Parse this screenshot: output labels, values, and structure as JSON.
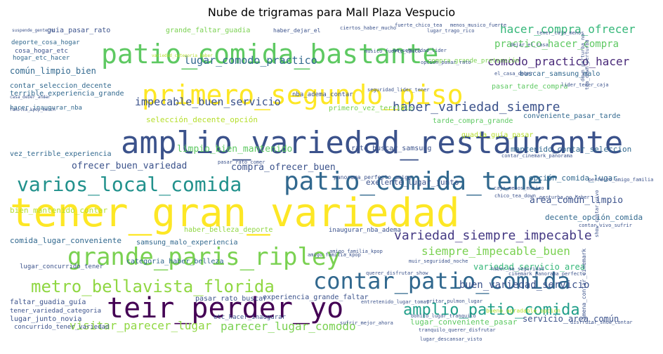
{
  "chart_data": {
    "type": "wordcloud",
    "title": "Nube de trigramas para Mall Plaza Vespucio",
    "words": [
      {
        "text": "tener_gran_variedad",
        "color": "#fde725"
      },
      {
        "text": "amplio_variedad_restaurante",
        "color": "#3b528b"
      },
      {
        "text": "patio_comida_bastante",
        "color": "#5ec962"
      },
      {
        "text": "primero_segundo_piso",
        "color": "#fde725"
      },
      {
        "text": "patio_comida_tener",
        "color": "#31688e"
      },
      {
        "text": "grande_paris_ripley",
        "color": "#7ad151"
      },
      {
        "text": "teir_perder_yo",
        "color": "#440154"
      },
      {
        "text": "contar_patio_comida",
        "color": "#31688e"
      },
      {
        "text": "varios_local_comida",
        "color": "#21918c"
      },
      {
        "text": "metro_bellavista_florida",
        "color": "#90d743"
      },
      {
        "text": "amplio_patio_comida",
        "color": "#1f9e89"
      },
      {
        "text": "haber_variedad_siempre",
        "color": "#3b528b"
      },
      {
        "text": "variedad_siempre_impecable",
        "color": "#443983"
      },
      {
        "text": "siempre_impecable_buen",
        "color": "#7ad151"
      },
      {
        "text": "hacer_compra_ofrecer",
        "color": "#35b779"
      },
      {
        "text": "comodo_practico_hacer",
        "color": "#482878"
      },
      {
        "text": "lugar_comodo_practico",
        "color": "#31688e"
      },
      {
        "text": "impecable_buen_servicio",
        "color": "#3b528b"
      },
      {
        "text": "visitar_parecer_lugar",
        "color": "#90d743"
      },
      {
        "text": "parecer_lugar_comodo",
        "color": "#7ad151"
      },
      {
        "text": "buen_variedad_servicio",
        "color": "#3b528b"
      },
      {
        "text": "practico_hacer_compra",
        "color": "#5ec962"
      },
      {
        "text": "limpio_bien_mantenido",
        "color": "#5ec962"
      },
      {
        "text": "ofrecer_buen_variedad",
        "color": "#3b528b"
      },
      {
        "text": "compra_ofrecer_buen",
        "color": "#3b528b"
      },
      {
        "text": "común_limpio_bien",
        "color": "#31688e"
      },
      {
        "text": "area_común_limpio",
        "color": "#3b528b"
      },
      {
        "text": "bien_mantenido_contar",
        "color": "#b5de2b"
      },
      {
        "text": "variedad_servicio_area",
        "color": "#35b779"
      },
      {
        "text": "servicio_area_común",
        "color": "#3b528b"
      },
      {
        "text": "opción_comida_lugar",
        "color": "#31688e"
      },
      {
        "text": "decente_opción_comida",
        "color": "#31688e"
      },
      {
        "text": "mantenido_contar_seleccion",
        "color": "#31688e"
      },
      {
        "text": "contar_seleccion_decente",
        "color": "#31688e"
      },
      {
        "text": "terrible_experiencia_grande",
        "color": "#31688e"
      },
      {
        "text": "vez_terrible_experiencia",
        "color": "#31688e"
      },
      {
        "text": "selección_decente_opción",
        "color": "#b5de2b"
      },
      {
        "text": "primero_vez_terrible",
        "color": "#7ad151"
      },
      {
        "text": "tarde_compra_grande",
        "color": "#5ec962"
      },
      {
        "text": "guadia_guía_pasar",
        "color": "#b5de2b"
      },
      {
        "text": "conveniente_pasar_tarde",
        "color": "#31688e"
      },
      {
        "text": "pasar_tarde_compra",
        "color": "#5ec962"
      },
      {
        "text": "buscar_samsung_malo",
        "color": "#31688e"
      },
      {
        "text": "compra_grande_pretensión",
        "color": "#7ad151"
      },
      {
        "text": "grande_faltar_guadia",
        "color": "#7ad151"
      },
      {
        "text": "guia_pasar_rato",
        "color": "#3b528b"
      },
      {
        "text": "deporte_cosa_hogar",
        "color": "#31688e"
      },
      {
        "text": "cosa_hogar_etc",
        "color": "#3b528b"
      },
      {
        "text": "hogar_etc_hacer",
        "color": "#31688e"
      },
      {
        "text": "hacer_inaugurar_nba",
        "color": "#31688e"
      },
      {
        "text": "nba_adema_contar",
        "color": "#3b528b"
      },
      {
        "text": "exelente_lugar_junto",
        "color": "#3b528b"
      },
      {
        "text": "lugar_conveniente_pasar",
        "color": "#5ec962"
      },
      {
        "text": "experiencia_grande_faltar",
        "color": "#3b528b"
      },
      {
        "text": "pasar_rato_buscar",
        "color": "#3b528b"
      },
      {
        "text": "faltar_guadia_guía",
        "color": "#3b528b"
      },
      {
        "text": "tener_variedad_categoria",
        "color": "#3b528b"
      },
      {
        "text": "lugar_junto_novia",
        "color": "#3b528b"
      },
      {
        "text": "concurrido_tener_variedad",
        "color": "#3b528b"
      },
      {
        "text": "etc_hacer_inaugurar",
        "color": "#3b528b"
      },
      {
        "text": "comida_lugar_conveniente",
        "color": "#31688e"
      },
      {
        "text": "samsung_malo_experiencia",
        "color": "#31688e"
      },
      {
        "text": "haber_belleza_deporte",
        "color": "#90d743"
      },
      {
        "text": "categoria_haber_belleza",
        "color": "#31688e"
      },
      {
        "text": "lugar_concurrido_tener",
        "color": "#3b528b"
      },
      {
        "text": "inaugurar_nba_adema",
        "color": "#3b528b"
      },
      {
        "text": "rato_buscar_samsung",
        "color": "#3b528b"
      },
      {
        "text": "panorama_perfecto_amigo",
        "color": "#3b528b"
      },
      {
        "text": "contar_cinemark_panorama",
        "color": "#3b528b"
      },
      {
        "text": "perfecto_amigo_familia",
        "color": "#3b528b"
      },
      {
        "text": "chico_tea_down",
        "color": "#3b528b"
      },
      {
        "text": "caja_menos_musico",
        "color": "#3b528b"
      },
      {
        "text": "perturba_no_haber",
        "color": "#3b528b"
      },
      {
        "text": "haber_ma_seguridad",
        "color": "#3b528b"
      },
      {
        "text": "cinemark_panorama_perfecto",
        "color": "#3b528b"
      },
      {
        "text": "bueno_agradable_opcion",
        "color": "#b5de2b"
      },
      {
        "text": "querer_disfrutar_show",
        "color": "#3b528b"
      },
      {
        "text": "amigo_familia_kpop",
        "color": "#3b528b"
      },
      {
        "text": "familia_kpop_merch",
        "color": "#3b528b"
      },
      {
        "text": "casa_deber_andar",
        "color": "#3b528b"
      },
      {
        "text": "seguridad_lider_tener",
        "color": "#3b528b"
      },
      {
        "text": "musico_fuerte_chico",
        "color": "#3b528b"
      },
      {
        "text": "ma_seguridad_lider",
        "color": "#3b528b"
      },
      {
        "text": "variedad_categoria_haber",
        "color": "#b5de2b"
      },
      {
        "text": "haber_dejar_el",
        "color": "#3b528b"
      },
      {
        "text": "fuerte_chico_tea",
        "color": "#3b528b"
      },
      {
        "text": "menos_musico_fuerte",
        "color": "#3b528b"
      },
      {
        "text": "lugar_trago_rico",
        "color": "#3b528b"
      },
      {
        "text": "tener_caja_menos",
        "color": "#3b528b"
      },
      {
        "text": "dejar_el_casa",
        "color": "#3b528b"
      },
      {
        "text": "el_casa_deber",
        "color": "#3b528b"
      },
      {
        "text": "lider_tener_caja",
        "color": "#3b528b"
      },
      {
        "text": "down_perturba_no",
        "color": "#3b528b"
      },
      {
        "text": "tea_down_perturba",
        "color": "#3b528b"
      },
      {
        "text": "amigo_familia_kpop",
        "color": "#3b528b"
      },
      {
        "text": "gritar_pulmon_lugar",
        "color": "#3b528b"
      },
      {
        "text": "opcion_pasar_rato",
        "color": "#3b528b"
      },
      {
        "text": "pasar_rato_comer",
        "color": "#3b528b"
      },
      {
        "text": "contar_vivo_sufrir",
        "color": "#3b528b"
      },
      {
        "text": "show_contar_vivo",
        "color": "#3b528b"
      },
      {
        "text": "muir_seguridad_noche",
        "color": "#3b528b"
      },
      {
        "text": "entretenido_lugar_tomar",
        "color": "#3b528b"
      },
      {
        "text": "bonito_lugar_tranquilo",
        "color": "#3b528b"
      },
      {
        "text": "sufrir_mejor_ahora",
        "color": "#3b528b"
      },
      {
        "text": "tranquilo_querer_disfrutar",
        "color": "#3b528b"
      },
      {
        "text": "lugar_descansar_visto",
        "color": "#3b528b"
      },
      {
        "text": "amena_contar_cinemark",
        "color": "#3b528b"
      },
      {
        "text": "disfrutar_show_contar",
        "color": "#3b528b"
      },
      {
        "text": "ciertos_haber_mucho",
        "color": "#3b528b"
      },
      {
        "text": "suspende_gente_no",
        "color": "#3b528b"
      }
    ]
  }
}
